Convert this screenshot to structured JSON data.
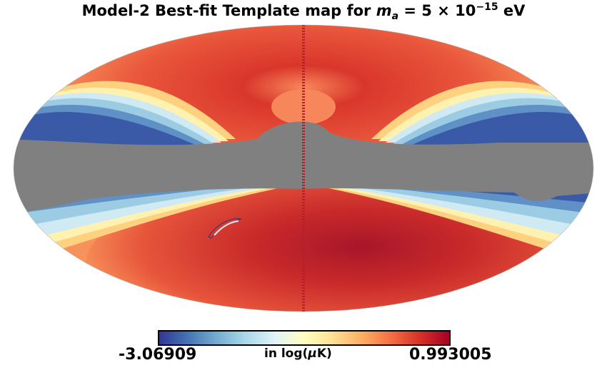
{
  "title": {
    "prefix": "Model-2 Best-fit Template map for ",
    "symbol": "m",
    "subscript": "a",
    "value": " = 5 × 10",
    "exponent": "−15",
    "unit": " eV"
  },
  "colorbar": {
    "min_label": "-3.06909",
    "max_label": "0.993005",
    "unit_prefix": "in log(",
    "unit_symbol": "μ",
    "unit_suffix": "K)",
    "min_value": -3.06909,
    "max_value": 0.993005,
    "colormap": [
      "#313695",
      "#4575b4",
      "#74add1",
      "#abd9e9",
      "#e0f3f8",
      "#ffffbf",
      "#fee090",
      "#fdae61",
      "#f46d43",
      "#d73027",
      "#a50026"
    ]
  },
  "colors": {
    "mask": "#808080",
    "warm": "#e8553a",
    "hot": "#c62a2a",
    "cold": "#4575b4"
  }
}
